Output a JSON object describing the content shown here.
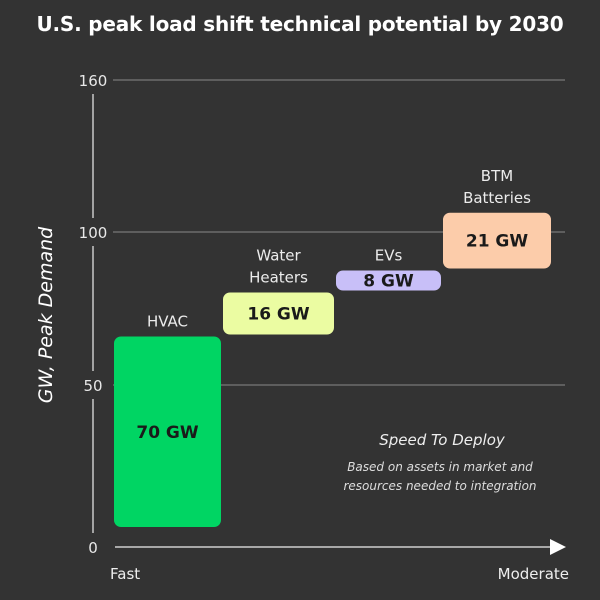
{
  "chart_data": {
    "type": "bar",
    "subtype": "waterfall",
    "title": "U.S. peak load shift technical potential by 2030",
    "ylabel": "GW, Peak Demand",
    "xlabel_start": "Fast",
    "xlabel_end": "Moderate",
    "ylim": [
      0,
      160
    ],
    "yticks": [
      "0",
      "50",
      "100",
      "160"
    ],
    "grid": true,
    "categories": [
      {
        "label": "HVAC",
        "value": 70,
        "value_label": "70 GW",
        "color": "#00d563"
      },
      {
        "label": "Water Heaters",
        "value": 16,
        "value_label": "16 GW",
        "color": "#ebfca2"
      },
      {
        "label": "EVs",
        "value": 8,
        "value_label": "8 GW",
        "color": "#c8bff8"
      },
      {
        "label": "BTM Batteries",
        "value": 21,
        "value_label": "21 GW",
        "color": "#fcccaa"
      }
    ],
    "annotation": {
      "title": "Speed To Deploy",
      "line1": "Based on assets in market and",
      "line2": "resources needed to integration"
    }
  }
}
